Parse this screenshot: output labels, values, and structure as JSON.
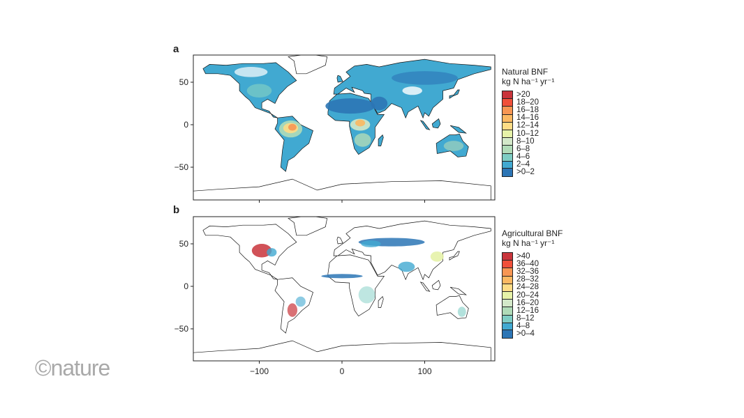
{
  "panels": [
    {
      "label": "a",
      "legend_title": "Natural BNF",
      "legend_unit": "kg N ha⁻¹ yr⁻¹",
      "classes": [
        ">20",
        "18–20",
        "16–18",
        "14–16",
        "12–14",
        "10–12",
        "8–10",
        "6–8",
        "4–6",
        "2–4",
        ">0–2"
      ]
    },
    {
      "label": "b",
      "legend_title": "Agricultural BNF",
      "legend_unit": "kg N ha⁻¹ yr⁻¹",
      "classes": [
        ">40",
        "36–40",
        "32–36",
        "28–32",
        "24–28",
        "20–24",
        "16–20",
        "12–16",
        "8–12",
        "4–8",
        ">0–4"
      ]
    }
  ],
  "colors": [
    "#c9343b",
    "#f0503a",
    "#f79653",
    "#fbb862",
    "#fedc86",
    "#e6f2a8",
    "#d3e8c9",
    "#b0dbb8",
    "#7ecdc4",
    "#41a9d1",
    "#2c75b5"
  ],
  "x_ticks": [
    "−100",
    "0",
    "100"
  ],
  "x_tick_values": [
    -100,
    0,
    100
  ],
  "y_ticks": [
    "50",
    "0",
    "−50"
  ],
  "y_tick_values": [
    50,
    0,
    -50
  ],
  "logo": "©nature"
}
